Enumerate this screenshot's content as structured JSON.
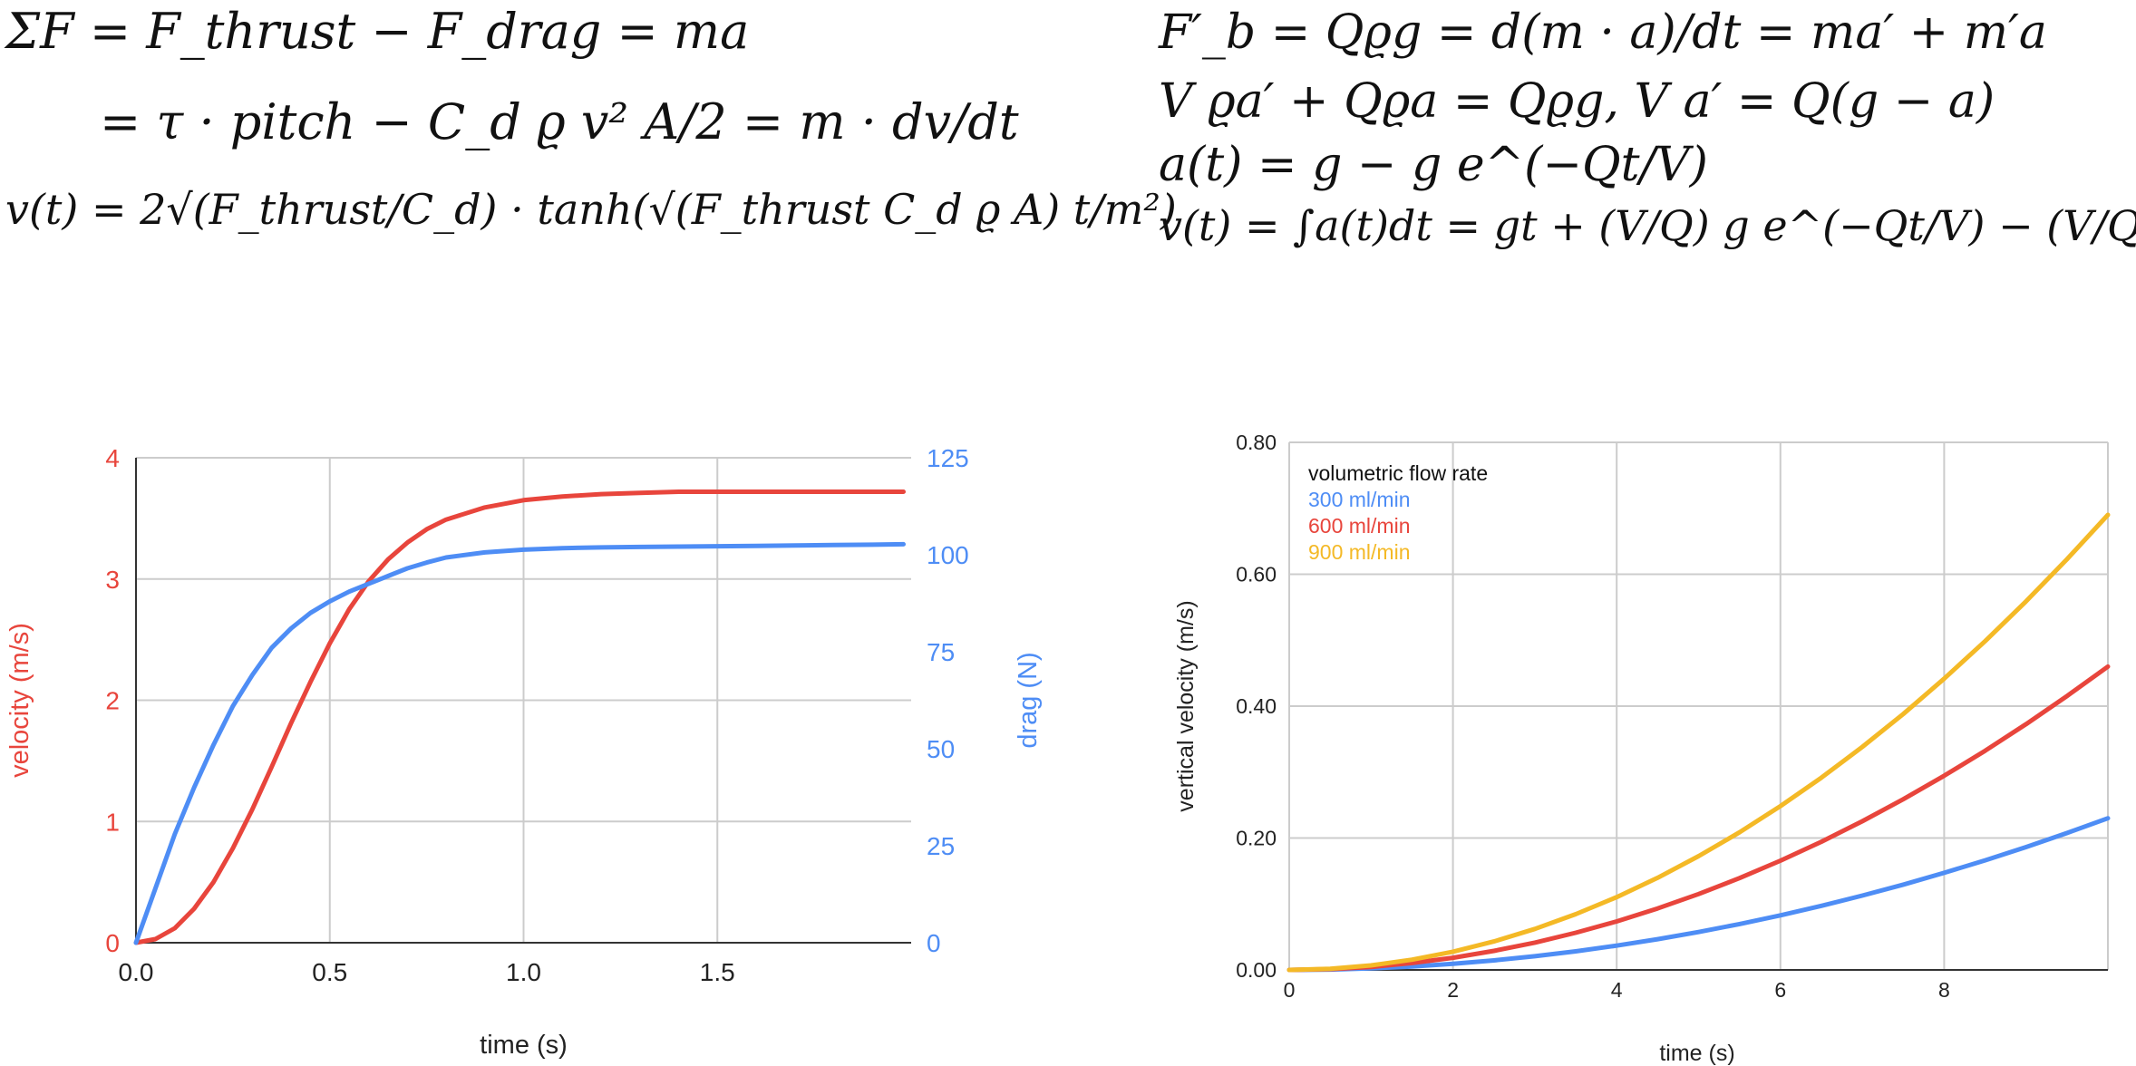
{
  "equations": {
    "left": [
      "ΣF = F_thrust − F_drag = ma",
      "= τ · pitch − C_d ϱ v² A/2 = m · dv/dt",
      "v(t) = 2√(F_thrust/C_d) · tanh(√(F_thrust C_d ϱ A) t/m²)"
    ],
    "right": [
      "F′_b = Qϱg = d(m · a)/dt = ma′ + m′a",
      "V ϱa′ + Qϱa = Qϱg,   V a′ = Q(g − a)",
      "a(t) = g − g e^(−Qt/V)",
      "v(t) = ∫a(t)dt = gt + (V/Q) g e^(−Qt/V) − (V/Q) g"
    ]
  },
  "chart_data": [
    {
      "type": "line",
      "xlabel": "time (s)",
      "ylabel": "velocity (m/s)",
      "y2label": "drag (N)",
      "xlim": [
        0,
        2.0
      ],
      "ylim": [
        0,
        4
      ],
      "y2lim": [
        0,
        125
      ],
      "xticks": [
        "0.0",
        "0.5",
        "1.0",
        "1.5"
      ],
      "yticks": [
        "0",
        "1",
        "2",
        "3",
        "4"
      ],
      "y2ticks": [
        "0",
        "25",
        "50",
        "75",
        "100",
        "125"
      ],
      "grid": true,
      "colors": {
        "velocity": "#e8453c",
        "drag": "#4e8df5"
      },
      "series": [
        {
          "axis": "left",
          "x": [
            0,
            0.05,
            0.1,
            0.15,
            0.2,
            0.25,
            0.3,
            0.35,
            0.4,
            0.45,
            0.5,
            0.55,
            0.6,
            0.65,
            0.7,
            0.75,
            0.8,
            0.9,
            1.0,
            1.1,
            1.2,
            1.3,
            1.4,
            1.5,
            1.6,
            1.7,
            1.8,
            1.9,
            1.98
          ],
          "values": [
            0,
            0.03,
            0.12,
            0.28,
            0.5,
            0.78,
            1.1,
            1.45,
            1.81,
            2.15,
            2.47,
            2.75,
            2.98,
            3.16,
            3.3,
            3.41,
            3.49,
            3.59,
            3.65,
            3.68,
            3.7,
            3.71,
            3.72,
            3.72,
            3.72,
            3.72,
            3.72,
            3.72,
            3.72
          ]
        },
        {
          "axis": "right",
          "x": [
            0,
            0.05,
            0.1,
            0.15,
            0.2,
            0.25,
            0.3,
            0.35,
            0.4,
            0.45,
            0.5,
            0.55,
            0.6,
            0.65,
            0.7,
            0.75,
            0.8,
            0.9,
            1.0,
            1.1,
            1.2,
            1.3,
            1.4,
            1.5,
            1.6,
            1.7,
            1.8,
            1.9,
            1.98
          ],
          "values": [
            0,
            14,
            28,
            40,
            51,
            61,
            69,
            76,
            81,
            85,
            88,
            90.5,
            92.5,
            94.5,
            96.5,
            98,
            99.3,
            100.6,
            101.3,
            101.7,
            101.9,
            102,
            102.1,
            102.2,
            102.3,
            102.4,
            102.5,
            102.6,
            102.7
          ]
        }
      ]
    },
    {
      "type": "line",
      "xlabel": "time (s)",
      "ylabel": "vertical velocity (m/s)",
      "xlim": [
        0,
        10
      ],
      "ylim": [
        0,
        0.8
      ],
      "xticks": [
        "0",
        "2",
        "4",
        "6",
        "8"
      ],
      "yticks": [
        "0.00",
        "0.20",
        "0.40",
        "0.60",
        "0.80"
      ],
      "grid": true,
      "legend": {
        "title": "volumetric flow rate",
        "placement": "top-left"
      },
      "series": [
        {
          "name": "300 ml/min",
          "color": "#4e8df5",
          "x": [
            0,
            0.5,
            1,
            1.5,
            2,
            2.5,
            3,
            3.5,
            4,
            4.5,
            5,
            5.5,
            6,
            6.5,
            7,
            7.5,
            8,
            8.5,
            9,
            9.5,
            10
          ],
          "values": [
            0,
            0.0006,
            0.0023,
            0.0052,
            0.0092,
            0.0144,
            0.0207,
            0.0282,
            0.0368,
            0.0466,
            0.0575,
            0.0696,
            0.0828,
            0.0972,
            0.1127,
            0.1294,
            0.1472,
            0.1662,
            0.1863,
            0.2076,
            0.23
          ]
        },
        {
          "name": "600 ml/min",
          "color": "#e8453c",
          "x": [
            0,
            0.5,
            1,
            1.5,
            2,
            2.5,
            3,
            3.5,
            4,
            4.5,
            5,
            5.5,
            6,
            6.5,
            7,
            7.5,
            8,
            8.5,
            9,
            9.5,
            10
          ],
          "values": [
            0,
            0.0012,
            0.0046,
            0.0104,
            0.0184,
            0.0288,
            0.0414,
            0.0564,
            0.0736,
            0.0932,
            0.115,
            0.1392,
            0.1656,
            0.1944,
            0.2254,
            0.2588,
            0.2944,
            0.3324,
            0.3726,
            0.4152,
            0.46
          ]
        },
        {
          "name": "900 ml/min",
          "color": "#f4b926",
          "x": [
            0,
            0.5,
            1,
            1.5,
            2,
            2.5,
            3,
            3.5,
            4,
            4.5,
            5,
            5.5,
            6,
            6.5,
            7,
            7.5,
            8,
            8.5,
            9,
            9.5,
            10
          ],
          "values": [
            0,
            0.0017,
            0.0069,
            0.0155,
            0.0276,
            0.0431,
            0.0621,
            0.0845,
            0.1104,
            0.1397,
            0.1725,
            0.2087,
            0.2484,
            0.2915,
            0.3381,
            0.3881,
            0.4416,
            0.4985,
            0.5589,
            0.6227,
            0.69
          ]
        }
      ]
    }
  ]
}
